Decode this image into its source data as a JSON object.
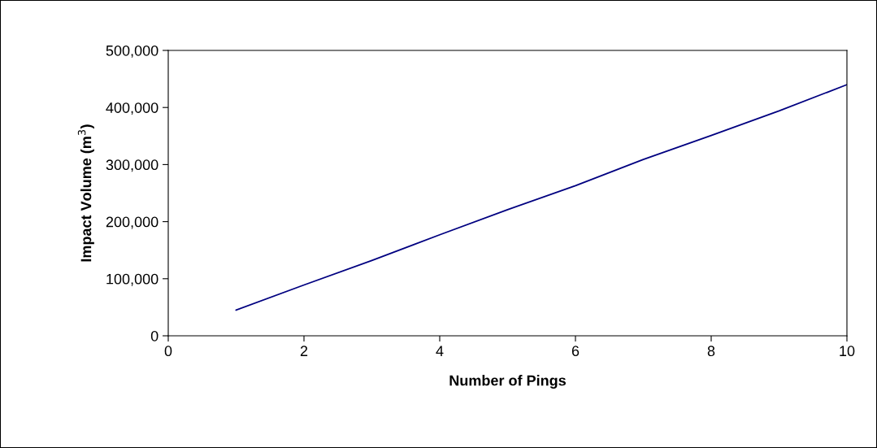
{
  "chart_data": {
    "type": "line",
    "xlabel": "Number of Pings",
    "ylabel": "Impact Volume (m$^{3}$)",
    "x": [
      1,
      2,
      3,
      4,
      5,
      6,
      7,
      8,
      9,
      10
    ],
    "series": [
      {
        "color": "#000080",
        "values": [
          45000,
          89000,
          132000,
          177000,
          221000,
          263000,
          309000,
          351000,
          394000,
          440000
        ]
      }
    ],
    "xlim": [
      0,
      10
    ],
    "xticks": [
      0,
      2,
      4,
      6,
      8,
      10
    ],
    "ylim": [
      0,
      500000
    ],
    "yticks": [
      {
        "value": 0,
        "label": "0"
      },
      {
        "value": 100000,
        "label": "100,000"
      },
      {
        "value": 200000,
        "label": "200,000"
      },
      {
        "value": 300000,
        "label": "300,000"
      },
      {
        "value": 400000,
        "label": "400,000"
      },
      {
        "value": 500000,
        "label": "500,000"
      }
    ],
    "grid": false,
    "legend": false,
    "marker": "none",
    "line_style": "solid"
  }
}
